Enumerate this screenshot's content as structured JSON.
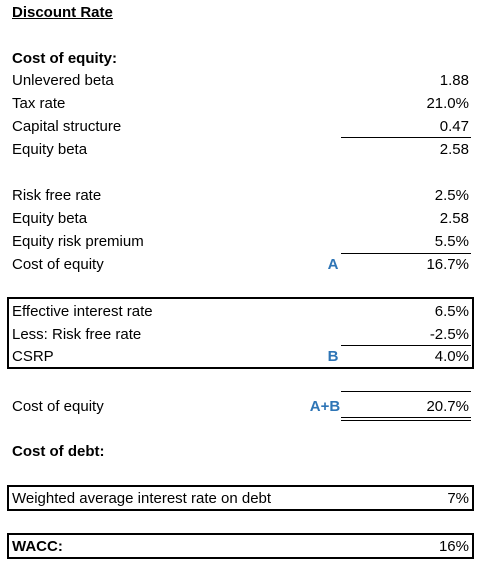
{
  "title": "Discount Rate",
  "cost_of_equity": {
    "heading": "Cost of equity:",
    "beta_rows": [
      {
        "label": "Unlevered beta",
        "value": "1.88"
      },
      {
        "label": "Tax rate",
        "value": "21.0%"
      },
      {
        "label": "Capital structure",
        "value": "0.47"
      },
      {
        "label": "Equity beta",
        "value": "2.58"
      }
    ],
    "capm_rows": [
      {
        "label": "Risk free rate",
        "value": "2.5%"
      },
      {
        "label": "Equity beta",
        "value": "2.58"
      },
      {
        "label": "Equity risk premium",
        "value": "5.5%"
      },
      {
        "label": "Cost of equity",
        "value": "16.7%",
        "tag": "A"
      }
    ],
    "csrp_rows": [
      {
        "label": "Effective interest rate",
        "value": "6.5%"
      },
      {
        "label": "Less: Risk free rate",
        "value": "-2.5%"
      },
      {
        "label": "CSRP",
        "value": "4.0%",
        "tag": "B"
      }
    ],
    "total": {
      "label": "Cost of equity",
      "tag": "A+B",
      "value": "20.7%"
    }
  },
  "cost_of_debt": {
    "heading": "Cost of debt:",
    "label": "Weighted average interest rate on debt",
    "value": "7%"
  },
  "wacc": {
    "label": "WACC:",
    "value": "16%"
  }
}
